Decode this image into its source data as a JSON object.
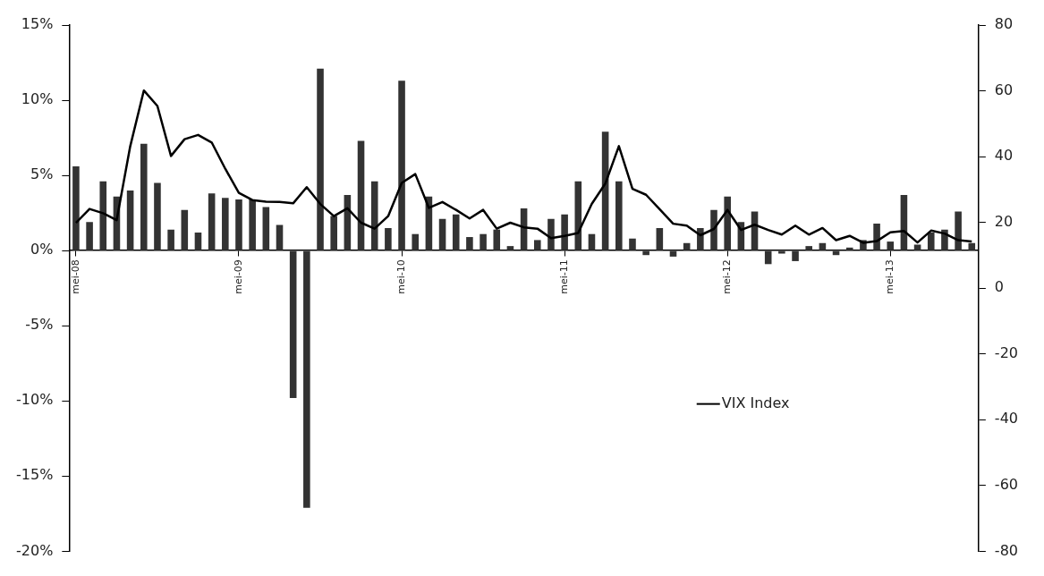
{
  "chart_data": {
    "type": "bar",
    "categories": [
      "mei-08",
      null,
      null,
      null,
      null,
      null,
      null,
      null,
      null,
      null,
      null,
      null,
      "mei-09",
      null,
      null,
      null,
      null,
      null,
      null,
      null,
      null,
      null,
      null,
      null,
      "mei-10",
      null,
      null,
      null,
      null,
      null,
      null,
      null,
      null,
      null,
      null,
      null,
      "mei-11",
      null,
      null,
      null,
      null,
      null,
      null,
      null,
      null,
      null,
      null,
      null,
      "mei-12",
      null,
      null,
      null,
      null,
      null,
      null,
      null,
      null,
      null,
      null,
      null,
      "mei-13",
      null,
      null,
      null,
      null,
      null,
      null
    ],
    "series": [
      {
        "color": "#333333",
        "values": [
          5.6,
          1.9,
          4.6,
          3.6,
          4.0,
          7.1,
          4.5,
          1.4,
          2.7,
          1.2,
          3.8,
          3.5,
          3.4,
          3.4,
          2.9,
          1.7,
          -9.8,
          -17.1,
          12.1,
          2.3,
          3.7,
          7.3,
          4.6,
          1.5,
          11.3,
          1.1,
          3.6,
          2.1,
          2.4,
          0.9,
          1.1,
          1.4,
          0.3,
          2.8,
          0.7,
          2.1,
          2.4,
          4.6,
          1.1,
          7.9,
          4.6,
          0.8,
          -0.3,
          1.5,
          -0.4,
          0.5,
          1.5,
          2.7,
          3.6,
          1.9,
          2.6,
          -0.9,
          -0.2,
          -0.7,
          0.3,
          0.5,
          -0.3,
          0.2,
          0.7,
          1.8,
          0.6,
          3.7,
          0.4,
          1.2,
          1.4,
          2.6,
          0.5
        ]
      },
      {
        "type": "line",
        "name": "VIX Index",
        "color": "#000000",
        "axis": "y2",
        "values": [
          19.9,
          24.1,
          22.8,
          20.7,
          43.2,
          60.1,
          55.4,
          40.2,
          45.3,
          46.6,
          44.3,
          36.3,
          29.0,
          26.8,
          26.3,
          26.2,
          25.8,
          30.7,
          25.6,
          21.9,
          24.3,
          19.9,
          18.1,
          21.9,
          32.0,
          34.7,
          24.4,
          26.2,
          23.8,
          21.2,
          23.8,
          18.1,
          19.9,
          18.5,
          18.1,
          15.2,
          15.9,
          16.8,
          25.6,
          31.8,
          43.2,
          30.2,
          28.4,
          24.0,
          19.6,
          19.0,
          16.1,
          18.0,
          23.8,
          17.7,
          19.3,
          17.7,
          16.3,
          19.0,
          16.3,
          18.3,
          14.6,
          15.9,
          13.8,
          14.3,
          17.0,
          17.4,
          13.9,
          17.5,
          16.6,
          14.6,
          14.2
        ]
      }
    ],
    "ylim": [
      -20,
      15
    ],
    "yticks": [
      {
        "value": -20,
        "label": "-20%"
      },
      {
        "value": -15,
        "label": "-15%"
      },
      {
        "value": -10,
        "label": "-10%"
      },
      {
        "value": -5,
        "label": "-5%"
      },
      {
        "value": 0,
        "label": "0%"
      },
      {
        "value": 5,
        "label": "5%"
      },
      {
        "value": 10,
        "label": "10%"
      },
      {
        "value": 15,
        "label": "15%"
      }
    ],
    "y2lim": [
      -80,
      80
    ],
    "y2ticks": [
      -80,
      -60,
      -40,
      -20,
      0,
      20,
      40,
      60,
      80
    ],
    "legend": "right"
  }
}
